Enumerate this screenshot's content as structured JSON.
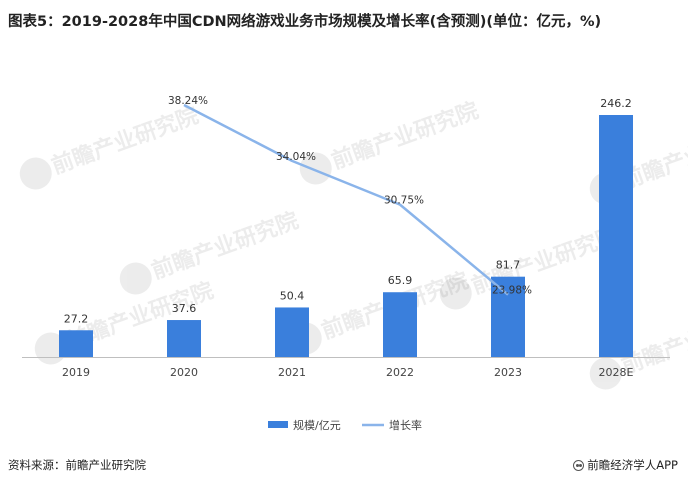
{
  "title": "图表5：2019-2028年中国CDN网络游戏业务市场规模及增长率(含预测)(单位：亿元，%)",
  "watermark": "前瞻产业研究院",
  "source_label": "资料来源：前瞻产业研究院",
  "brand_label": "前瞻经济学人APP",
  "colors": {
    "bar": "#3a7fdc",
    "line": "#8ab4ea",
    "axis": "#bfbfbf"
  },
  "chart_data": {
    "type": "bar",
    "categories": [
      "2019",
      "2020",
      "2021",
      "2022",
      "2023",
      "2028E"
    ],
    "series": [
      {
        "name": "规模/亿元",
        "type": "bar",
        "values": [
          27.2,
          37.6,
          50.4,
          65.9,
          81.7,
          246.2
        ],
        "labels": [
          "27.2",
          "37.6",
          "50.4",
          "65.9",
          "81.7",
          "246.2"
        ]
      },
      {
        "name": "增长率",
        "type": "line",
        "values": [
          null,
          38.24,
          34.04,
          30.75,
          23.98,
          null
        ],
        "labels": [
          "",
          "38.24%",
          "34.04%",
          "30.75%",
          "23.98%",
          ""
        ]
      }
    ],
    "legend_position": "bottom-center",
    "grid": false
  }
}
